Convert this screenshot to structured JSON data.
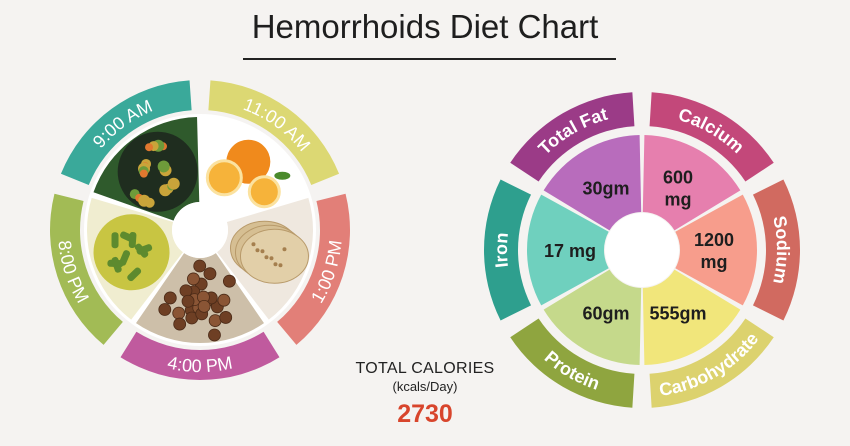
{
  "title": "Hemorrhoids Diet Chart",
  "meal_schedule": [
    {
      "time": "9:00 AM",
      "color": "#3aa99a"
    },
    {
      "time": "11:00 AM",
      "color": "#dcd873"
    },
    {
      "time": "1:00 PM",
      "color": "#e27f78"
    },
    {
      "time": "4:00 PM",
      "color": "#c05a9e"
    },
    {
      "time": "8:00 PM",
      "color": "#a2bb55"
    }
  ],
  "food_icons": [
    "vegetable-rice-icon",
    "orange-icon",
    "chapati-icon",
    "chickpeas-icon",
    "vegetable-curry-icon"
  ],
  "total_calories": {
    "label": "TOTAL CALORIES",
    "unit": "(kcals/Day)",
    "value": "2730"
  },
  "chart_data": {
    "type": "table",
    "nutrients": [
      {
        "name": "Total Fat",
        "value": "30gm",
        "color": "#9b3b87",
        "inner_color": "#b86cbc"
      },
      {
        "name": "Calcium",
        "value": "600 mg",
        "color": "#c3487a",
        "inner_color": "#e67fae"
      },
      {
        "name": "Sodium",
        "value": "1200 mg",
        "color": "#d16a60",
        "inner_color": "#f79d8c"
      },
      {
        "name": "Carbohydrate",
        "value": "555gm",
        "color": "#dcd26e",
        "inner_color": "#f1e67b"
      },
      {
        "name": "Protein",
        "value": "60gm",
        "color": "#8fa53f",
        "inner_color": "#c5d98b"
      },
      {
        "name": "Iron",
        "value": "17 mg",
        "color": "#2e9f8e",
        "inner_color": "#6fd0be"
      }
    ]
  }
}
